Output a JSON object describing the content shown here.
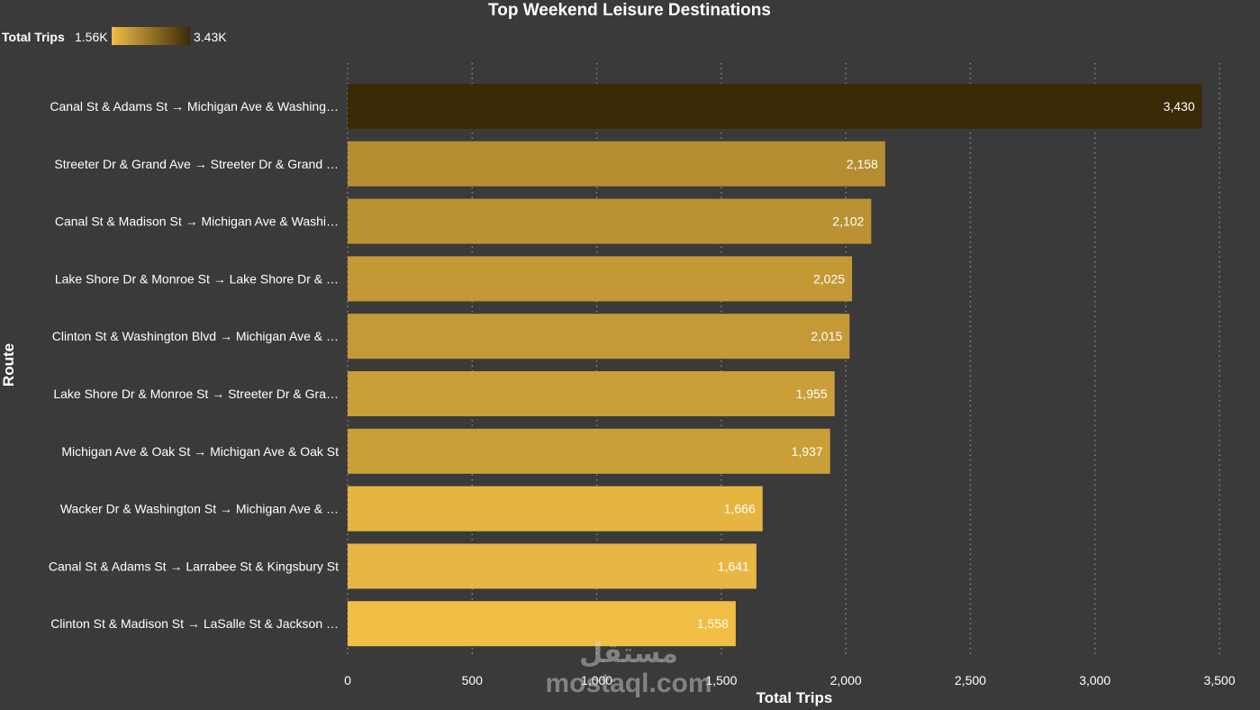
{
  "chart_data": {
    "type": "bar",
    "orientation": "horizontal",
    "title": "Top Weekend Leisure Destinations",
    "xlabel": "Total Trips",
    "ylabel": "Route",
    "xlim": [
      0,
      3500
    ],
    "xticks": [
      0,
      500,
      1000,
      1500,
      2000,
      2500,
      3000,
      3500
    ],
    "xtick_labels": [
      "0",
      "500",
      "1,000",
      "1,500",
      "2,000",
      "2,500",
      "3,000",
      "3,500"
    ],
    "grid": "vertical dotted",
    "legend": {
      "title": "Total Trips",
      "min_label": "1.56K",
      "max_label": "3.43K",
      "min_value": 1558,
      "max_value": 3430,
      "min_color": "#f0bd45",
      "max_color": "#3b2a06",
      "placement": "top-left"
    },
    "categories": [
      "Canal St & Adams St → Michigan Ave & Washing…",
      "Streeter Dr & Grand Ave → Streeter Dr & Grand …",
      "Canal St & Madison St → Michigan Ave & Washi…",
      "Lake Shore Dr & Monroe St → Lake Shore Dr & …",
      "Clinton St & Washington Blvd → Michigan Ave & …",
      "Lake Shore Dr & Monroe St → Streeter Dr & Gra…",
      "Michigan Ave & Oak St → Michigan Ave & Oak St",
      "Wacker Dr & Washington St → Michigan Ave & …",
      "Canal St & Adams St → Larrabee St & Kingsbury St",
      "Clinton St & Madison St → LaSalle St & Jackson …"
    ],
    "values": [
      3430,
      2158,
      2102,
      2025,
      2015,
      1955,
      1937,
      1666,
      1641,
      1558
    ],
    "value_labels": [
      "3,430",
      "2,158",
      "2,102",
      "2,025",
      "2,015",
      "1,955",
      "1,937",
      "1,666",
      "1,641",
      "1,558"
    ]
  },
  "watermark": {
    "arabic": "مستقل",
    "latin": "mostaql.com"
  },
  "colors": {
    "background": "#3a3a3a",
    "text": "#ffffff",
    "gridline": "#8a8a8a"
  }
}
